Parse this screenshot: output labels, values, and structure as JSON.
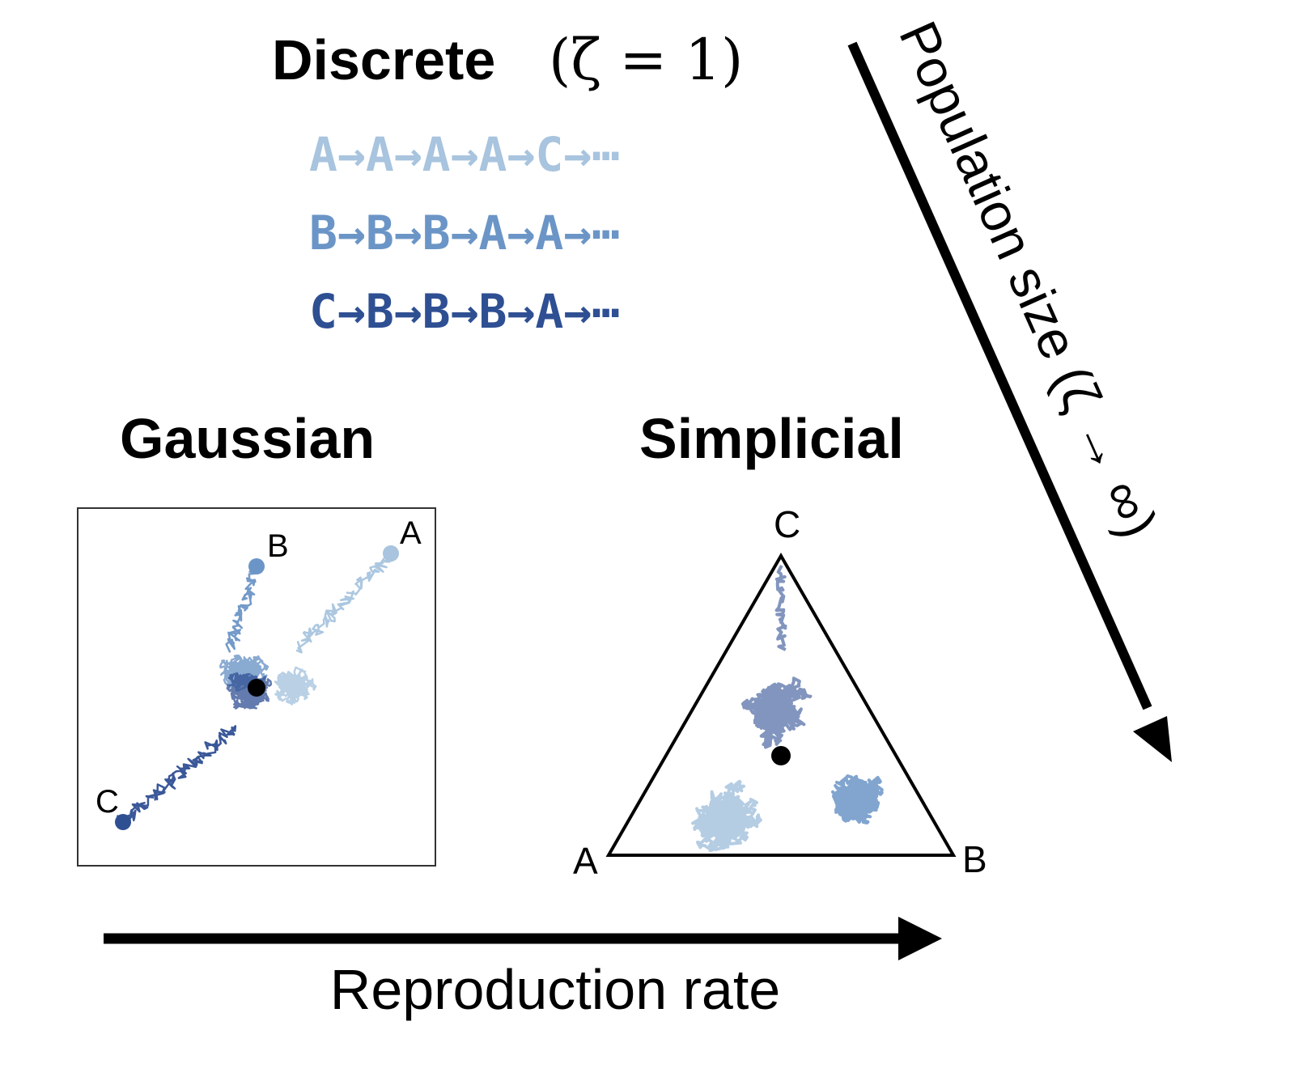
{
  "discrete": {
    "title": "Discrete",
    "formula": "(ζ = 1)",
    "sequences": [
      {
        "text": "A→A→A→A→C→⋯",
        "color": "#a8c4de"
      },
      {
        "text": "B→B→B→A→A→⋯",
        "color": "#6b95c6"
      },
      {
        "text": "C→B→B→B→A→⋯",
        "color": "#2f4f93"
      }
    ]
  },
  "gaussian": {
    "title": "Gaussian",
    "point_labels": [
      "A",
      "B",
      "C"
    ]
  },
  "simplicial": {
    "title": "Simplicial",
    "vertex_labels": [
      "A",
      "B",
      "C"
    ]
  },
  "axes": {
    "horizontal_label": "Reproduction rate",
    "diagonal_label": "Population size (ζ → ∞)"
  },
  "colors": {
    "light": "#a8c4de",
    "medium": "#6b95c6",
    "dark": "#2f4f93",
    "center": "#000000"
  }
}
